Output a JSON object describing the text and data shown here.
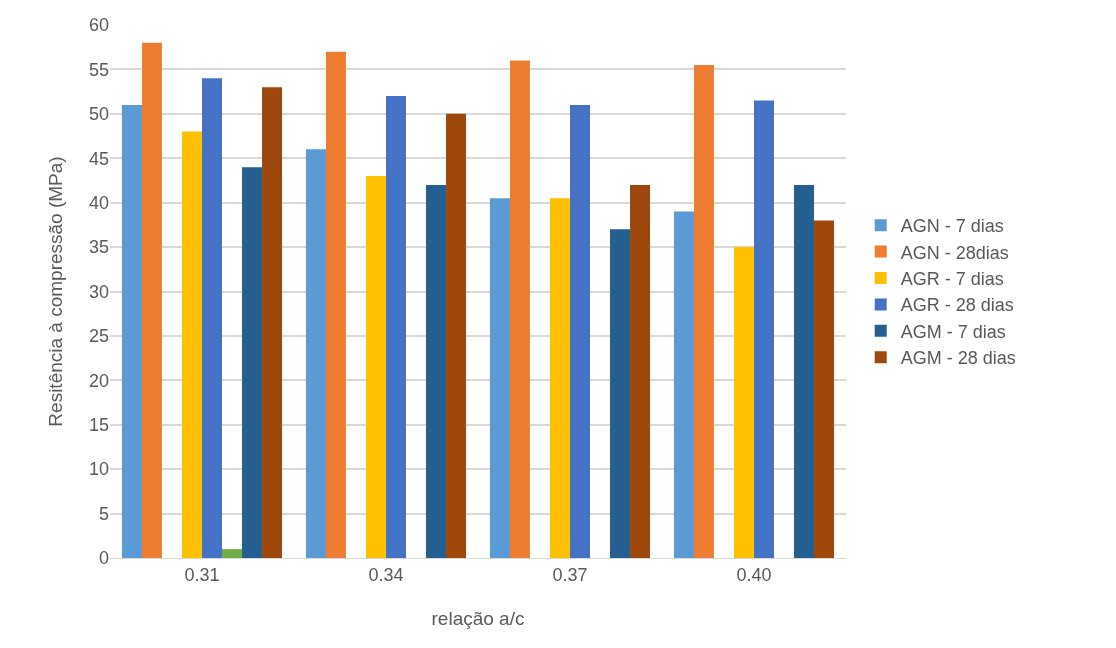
{
  "chart_data": {
    "type": "bar",
    "xlabel": "relação a/c",
    "ylabel": "Resitência à compressão (MPa)",
    "categories": [
      "0.31",
      "0.34",
      "0.37",
      "0.40"
    ],
    "series": [
      {
        "name": "AGN - 7 dias",
        "color": "#5b9bd5",
        "values": [
          51,
          46,
          40.5,
          39
        ]
      },
      {
        "name": "AGN - 28dias",
        "color": "#ed7d31",
        "values": [
          58,
          57,
          56,
          55.5
        ]
      },
      {
        "values": [
          null,
          null,
          null,
          null
        ]
      },
      {
        "name": "AGR - 7 dias",
        "color": "#ffc000",
        "values": [
          48,
          43,
          40.5,
          35
        ]
      },
      {
        "name": "AGR - 28 dias",
        "color": "#4472c4",
        "values": [
          54,
          52,
          51,
          51.5
        ]
      },
      {
        "color": "#70ad47",
        "values": [
          1,
          null,
          null,
          null
        ]
      },
      {
        "name": "AGM - 7 dias",
        "color": "#255e91",
        "values": [
          44,
          42,
          37,
          42
        ]
      },
      {
        "name": "AGM - 28 dias",
        "color": "#9e480e",
        "values": [
          53,
          50,
          42,
          38
        ]
      }
    ],
    "ylim": [
      0,
      60
    ],
    "yticks": [
      0,
      5,
      10,
      15,
      20,
      25,
      30,
      35,
      40,
      45,
      50,
      55,
      60
    ],
    "grid": "y",
    "legend": "right"
  }
}
